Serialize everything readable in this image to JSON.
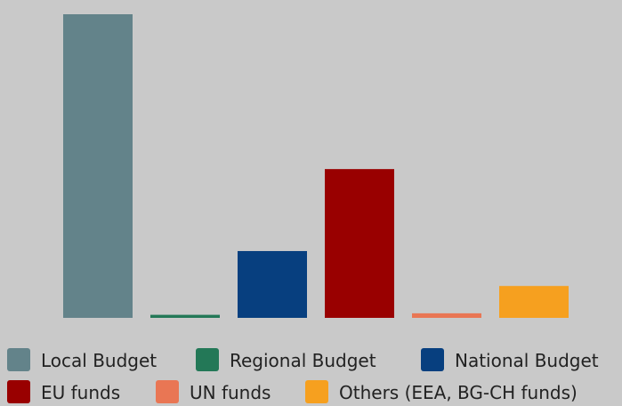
{
  "chart_data": {
    "type": "bar",
    "title": "",
    "xlabel": "",
    "ylabel": "",
    "ylim": [
      0,
      100
    ],
    "grid": false,
    "legend_position": "bottom",
    "series": [
      {
        "name": "Local Budget",
        "value": 100,
        "color": "#63838a"
      },
      {
        "name": "Regional Budget",
        "value": 1,
        "color": "#237857"
      },
      {
        "name": "National Budget",
        "value": 22,
        "color": "#073f7f"
      },
      {
        "name": "EU funds",
        "value": 49,
        "color": "#990000"
      },
      {
        "name": "UN funds",
        "value": 1.5,
        "color": "#e97654"
      },
      {
        "name": "Others (EEA, BG-CH funds)",
        "value": 10.5,
        "color": "#f6a01f"
      }
    ]
  }
}
